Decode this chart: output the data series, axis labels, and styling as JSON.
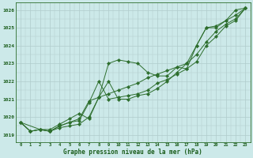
{
  "xlabel": "Graphe pression niveau de la mer (hPa)",
  "background_color": "#cce9e9",
  "plot_bg_color": "#cce9e9",
  "grid_color": "#b0cccc",
  "line_color": "#2d6e2d",
  "marker_color": "#2d6e2d",
  "ylim": [
    1018.6,
    1026.4
  ],
  "xlim": [
    -0.5,
    23.5
  ],
  "xticks": [
    0,
    1,
    2,
    3,
    4,
    5,
    6,
    7,
    8,
    9,
    10,
    11,
    12,
    13,
    14,
    15,
    16,
    17,
    18,
    19,
    20,
    21,
    22,
    23
  ],
  "yticks": [
    1019,
    1020,
    1021,
    1022,
    1023,
    1024,
    1025,
    1026
  ],
  "line1_x": [
    0,
    1,
    2,
    3,
    4,
    5,
    6,
    7,
    8,
    9,
    10,
    11,
    12,
    13,
    14,
    15,
    16,
    17,
    18,
    19,
    20,
    21,
    22,
    23
  ],
  "line1_y": [
    1019.7,
    1019.2,
    1019.3,
    1019.2,
    1019.4,
    1019.5,
    1019.6,
    1020.0,
    1021.1,
    1023.0,
    1023.2,
    1023.1,
    1023.0,
    1022.5,
    1022.3,
    1022.3,
    1022.8,
    1022.7,
    1024.0,
    1025.0,
    1025.1,
    1025.4,
    1026.0,
    1026.1
  ],
  "line2_x": [
    0,
    1,
    2,
    3,
    4,
    5,
    6,
    7,
    8,
    9,
    10,
    11,
    12,
    13,
    14,
    15,
    16,
    17,
    18,
    19,
    20,
    21,
    22,
    23
  ],
  "line2_y": [
    1019.7,
    1019.2,
    1019.3,
    1019.2,
    1019.5,
    1019.7,
    1019.8,
    1020.8,
    1022.0,
    1021.0,
    1021.1,
    1021.2,
    1021.3,
    1021.5,
    1021.9,
    1022.1,
    1022.4,
    1022.7,
    1023.1,
    1024.0,
    1024.5,
    1025.1,
    1025.4,
    1026.1
  ],
  "line3_x": [
    0,
    1,
    2,
    3,
    4,
    5,
    6,
    7,
    8,
    9,
    10,
    11,
    12,
    13,
    14,
    15,
    16,
    17,
    18,
    19,
    20,
    21,
    22,
    23
  ],
  "line3_y": [
    1019.7,
    1019.2,
    1019.3,
    1019.2,
    1019.5,
    1019.7,
    1019.9,
    1020.9,
    1021.1,
    1021.3,
    1021.5,
    1021.7,
    1021.9,
    1022.2,
    1022.4,
    1022.6,
    1022.8,
    1023.0,
    1023.5,
    1024.2,
    1024.8,
    1025.2,
    1025.5,
    1026.1
  ],
  "line4_x": [
    0,
    2,
    3,
    4,
    5,
    6,
    7,
    8,
    9,
    10,
    11,
    12,
    13,
    14,
    15,
    16,
    17,
    18,
    19,
    20,
    21,
    22,
    23
  ],
  "line4_y": [
    1019.7,
    1019.3,
    1019.3,
    1019.6,
    1019.9,
    1020.2,
    1019.9,
    1021.1,
    1022.0,
    1021.0,
    1021.0,
    1021.2,
    1021.3,
    1021.6,
    1022.0,
    1022.5,
    1023.0,
    1024.0,
    1025.0,
    1025.0,
    1025.4,
    1025.7,
    1026.1
  ]
}
